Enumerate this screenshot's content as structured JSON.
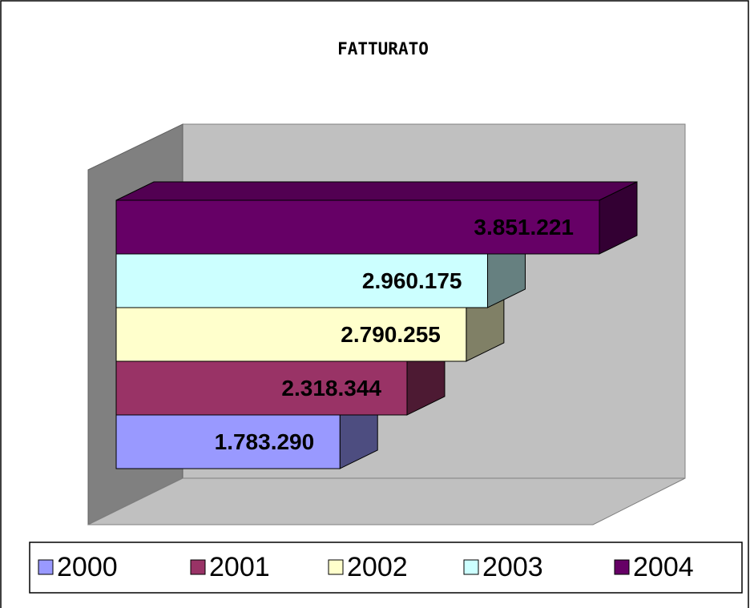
{
  "chart_data": {
    "type": "bar3d",
    "title": "FATTURATO",
    "series": [
      {
        "name": "2000",
        "color": "#9999ff",
        "values": [
          1783290
        ],
        "value_labels": [
          "1.783.290"
        ]
      },
      {
        "name": "2001",
        "color": "#993366",
        "values": [
          2318344
        ],
        "value_labels": [
          "2.318.344"
        ]
      },
      {
        "name": "2002",
        "color": "#ffffcc",
        "values": [
          2790255
        ],
        "value_labels": [
          "2.790.255"
        ]
      },
      {
        "name": "2003",
        "color": "#ccffff",
        "values": [
          2960175
        ],
        "value_labels": [
          "2.960.175"
        ]
      },
      {
        "name": "2004",
        "color": "#660066",
        "values": [
          3851221
        ],
        "value_labels": [
          "3.851.221"
        ]
      }
    ]
  }
}
